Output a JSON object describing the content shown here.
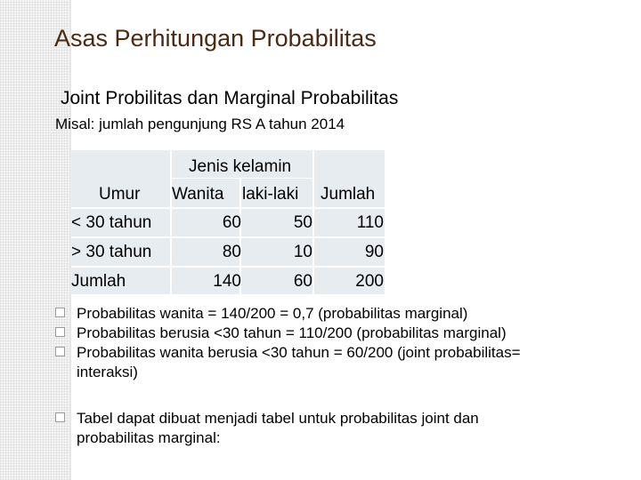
{
  "title": "Asas Perhitungan Probabilitas",
  "subtitle": "Joint Probilitas dan Marginal Probabilitas",
  "intro": "Misal: jumlah pengunjung RS A tahun 2014",
  "table": {
    "group_header": "Jenis kelamin",
    "row_header": "Umur",
    "columns": [
      "Wanita",
      "laki-laki",
      "Jumlah"
    ],
    "rows": [
      {
        "label": "< 30 tahun",
        "values": [
          "60",
          "50",
          "110"
        ]
      },
      {
        "label": "> 30 tahun",
        "values": [
          "80",
          "10",
          "90"
        ]
      },
      {
        "label": "Jumlah",
        "values": [
          "140",
          "60",
          "200"
        ]
      }
    ]
  },
  "bullets": [
    "Probabilitas wanita = 140/200 = 0,7 (probabilitas marginal)",
    "Probabilitas berusia <30 tahun = 110/200 (probabilitas marginal)",
    "Probabilitas wanita berusia <30 tahun = 60/200 (joint probabilitas= interaksi)",
    "Tabel dapat dibuat menjadi tabel untuk probabilitas joint dan probabilitas marginal:"
  ]
}
